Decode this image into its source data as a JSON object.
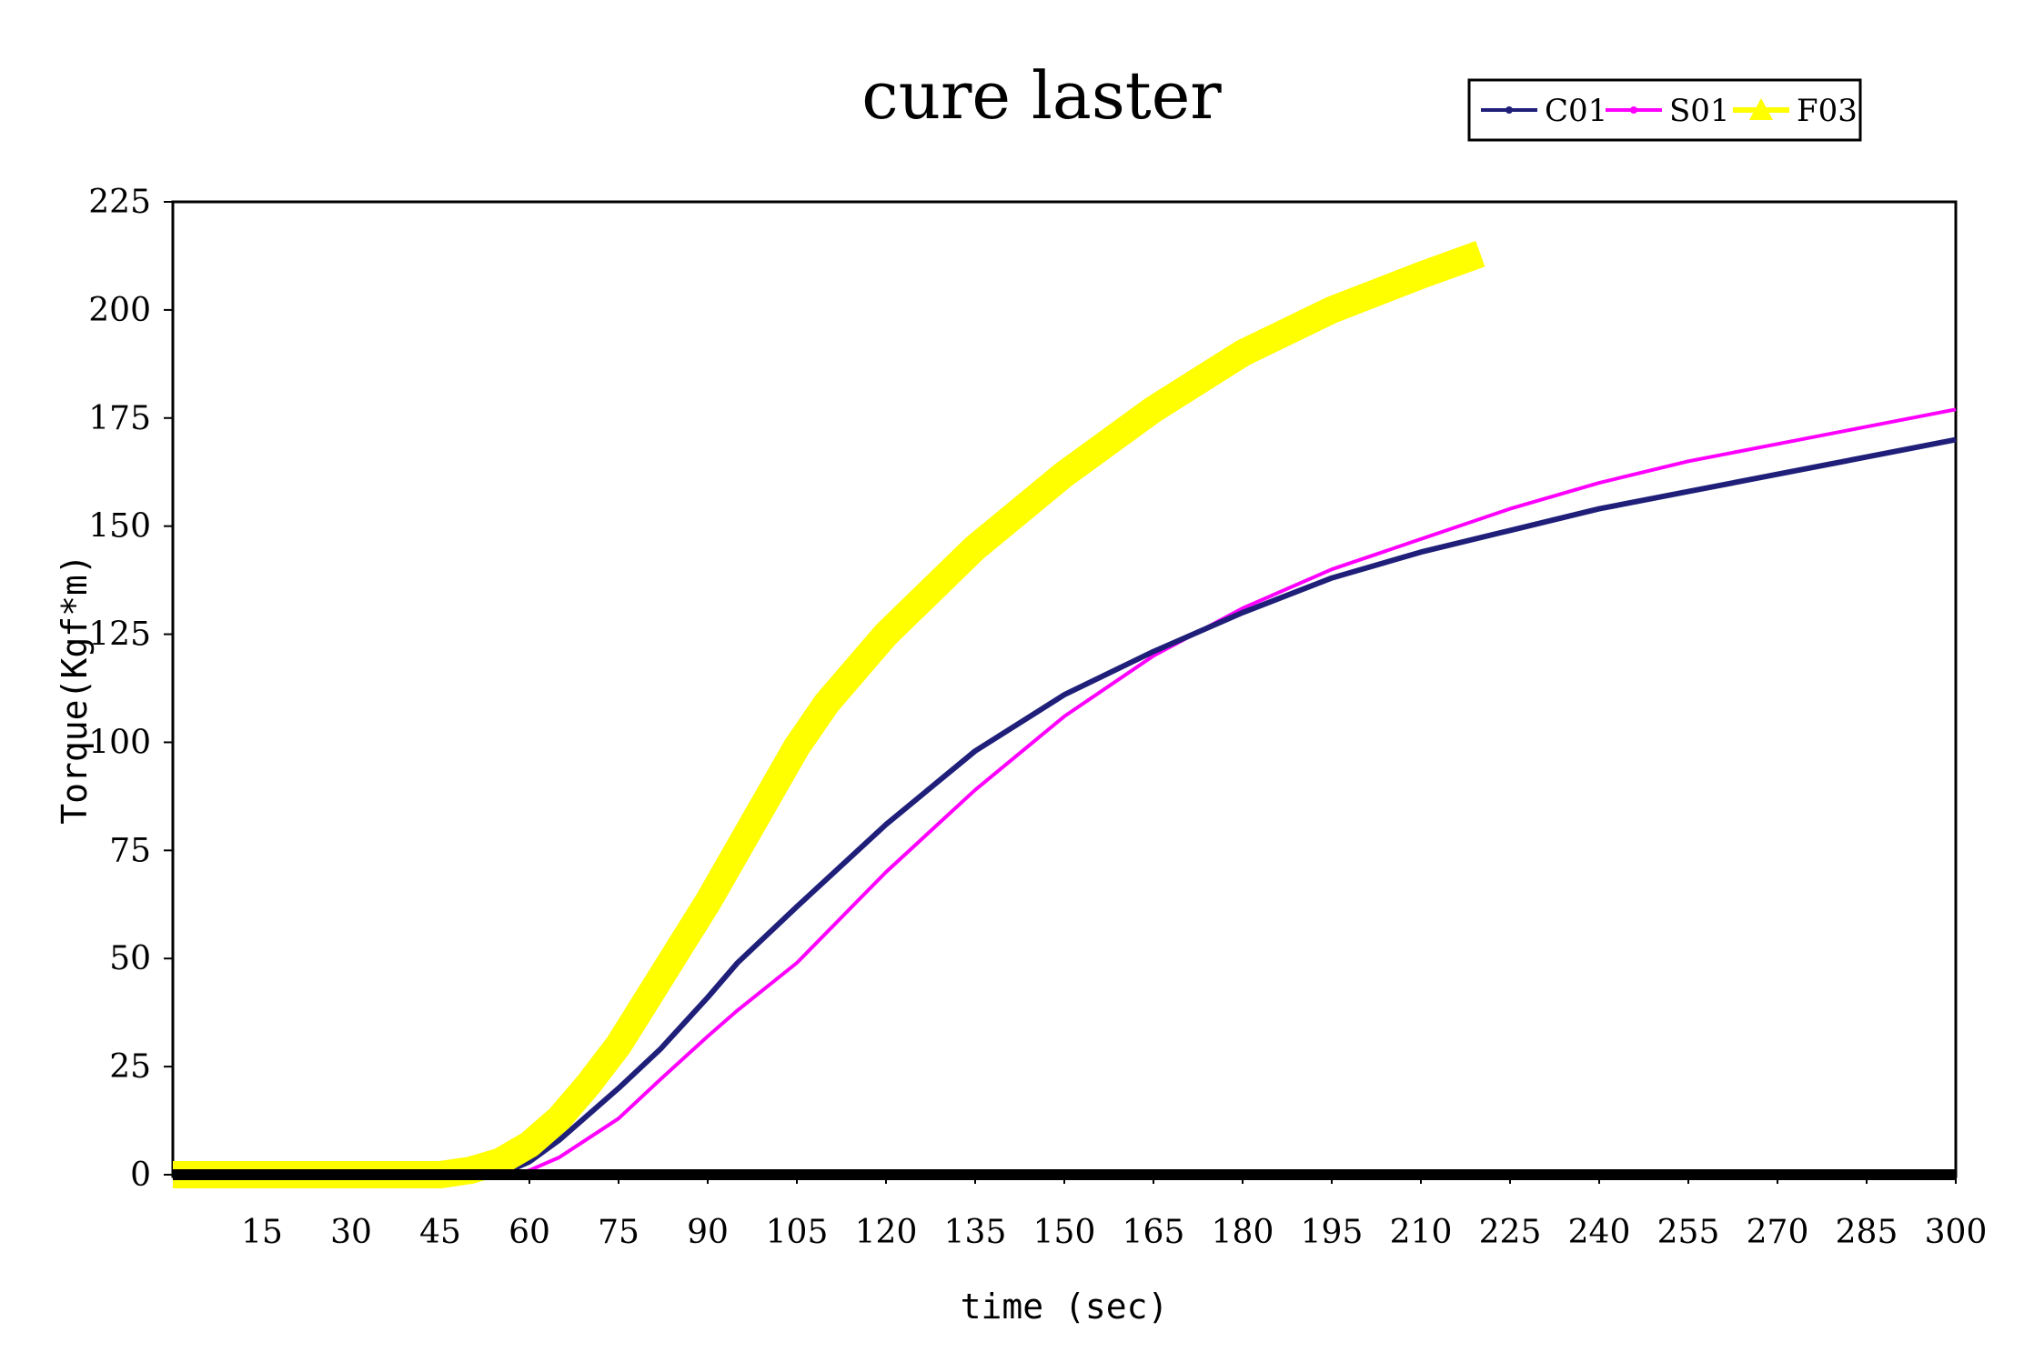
{
  "chart_data": {
    "type": "line",
    "title": "cure laster",
    "xlabel": "time (sec)",
    "ylabel": "Torque(Kgf*m)",
    "xlim": [
      0,
      300
    ],
    "ylim": [
      0,
      225
    ],
    "x_ticks": [
      15,
      30,
      45,
      60,
      75,
      90,
      105,
      120,
      135,
      150,
      165,
      180,
      195,
      210,
      225,
      240,
      255,
      270,
      285,
      300
    ],
    "y_ticks": [
      0,
      25,
      50,
      75,
      100,
      125,
      150,
      175,
      200,
      225
    ],
    "grid": false,
    "legend_position": "top-right",
    "series": [
      {
        "name": "C01",
        "color": "#1f1f7a",
        "x": [
          0,
          45,
          55,
          60,
          65,
          75,
          82,
          90,
          95,
          105,
          120,
          135,
          150,
          165,
          180,
          195,
          210,
          225,
          240,
          255,
          270,
          285,
          300
        ],
        "y": [
          0,
          0,
          0,
          3,
          8,
          20,
          29,
          41,
          49,
          62,
          81,
          98,
          111,
          121,
          130,
          138,
          144,
          149,
          154,
          158,
          162,
          166,
          170
        ]
      },
      {
        "name": "S01",
        "color": "#ff00ff",
        "x": [
          0,
          50,
          57,
          60,
          65,
          75,
          82,
          90,
          95,
          105,
          115,
          120,
          135,
          150,
          165,
          180,
          195,
          210,
          225,
          240,
          255,
          270,
          285,
          300
        ],
        "y": [
          0,
          0,
          0,
          1,
          4,
          13,
          22,
          32,
          38,
          49,
          63,
          70,
          89,
          106,
          120,
          131,
          140,
          147,
          154,
          160,
          165,
          169,
          173,
          177
        ]
      },
      {
        "name": "F03",
        "color": "#ffff00",
        "x": [
          0,
          30,
          45,
          50,
          55,
          60,
          65,
          70,
          75,
          80,
          85,
          90,
          95,
          100,
          105,
          110,
          115,
          120,
          135,
          150,
          165,
          180,
          195,
          210,
          220
        ],
        "y": [
          0,
          0,
          0,
          1,
          3,
          7,
          13,
          21,
          30,
          41,
          52,
          63,
          75,
          87,
          99,
          109,
          117,
          125,
          145,
          162,
          177,
          190,
          200,
          208,
          213
        ]
      }
    ]
  }
}
